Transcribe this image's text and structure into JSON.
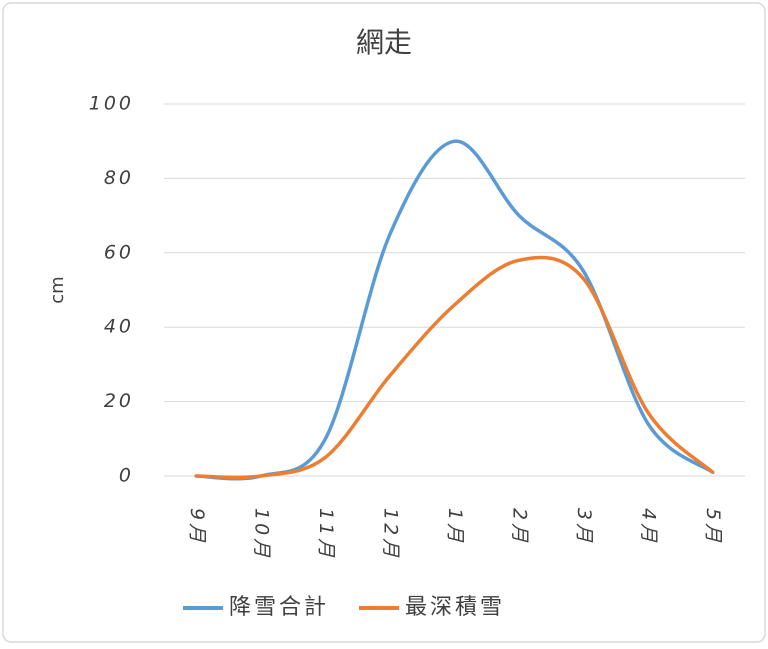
{
  "chart_data": {
    "type": "line",
    "title": "網走",
    "y_label": "cm",
    "categories": [
      "9月",
      "10月",
      "11月",
      "12月",
      "1月",
      "2月",
      "3月",
      "4月",
      "5月"
    ],
    "series": [
      {
        "name": "降雪合計",
        "color": "#5b9bd5",
        "values": [
          0,
          0,
          10,
          65,
          90,
          70,
          55,
          14,
          1
        ]
      },
      {
        "name": "最深積雪",
        "color": "#ed7d31",
        "values": [
          0,
          0,
          5,
          27,
          46,
          58,
          53,
          17,
          1
        ]
      }
    ],
    "ylim": [
      0,
      100
    ],
    "yticks": [
      0,
      20,
      40,
      60,
      80,
      100
    ],
    "grid": true,
    "smooth": true,
    "legend": "bottom"
  }
}
